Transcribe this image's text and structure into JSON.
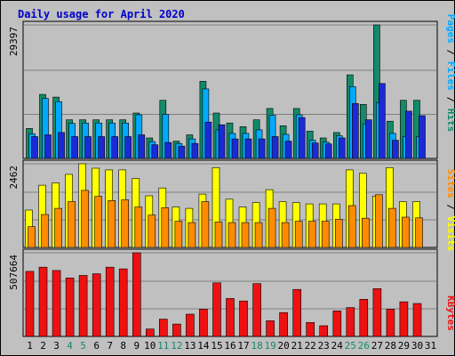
{
  "title": "Daily usage for April 2020",
  "colors": {
    "hits": "#138a6a",
    "files": "#00aaff",
    "pages": "#1a2bd6",
    "visits": "#ffff00",
    "sites": "#ff8c00",
    "kbytes": "#ee1111",
    "weekend": "#138a6a",
    "separator": "#000000",
    "panel_bg": "#c0c0c0",
    "grid": "#808080"
  },
  "side_labels": {
    "top": [
      "Pages",
      "Files",
      "Hits"
    ],
    "middle": [
      "Sites",
      "Visits"
    ],
    "bottom": [
      "KBytes"
    ]
  },
  "chart_data": [
    {
      "type": "bar",
      "panel": "top",
      "categories": [
        "1",
        "2",
        "3",
        "4",
        "5",
        "6",
        "7",
        "8",
        "9",
        "10",
        "11",
        "12",
        "13",
        "14",
        "15",
        "16",
        "17",
        "18",
        "19",
        "20",
        "21",
        "22",
        "23",
        "24",
        "25",
        "26",
        "27",
        "28",
        "29",
        "30",
        "31"
      ],
      "weekend_days": [
        "4",
        "5",
        "11",
        "12",
        "18",
        "19",
        "25",
        "26"
      ],
      "ymax": 29397,
      "ytick_label": "29397",
      "series": [
        {
          "name": "Hits",
          "values": [
            6600,
            14100,
            13500,
            8500,
            8500,
            8500,
            8500,
            8500,
            10000,
            4500,
            12800,
            3800,
            5200,
            17000,
            10000,
            7800,
            7000,
            8500,
            11000,
            7200,
            11000,
            6000,
            4500,
            5700,
            18400,
            11900,
            29397,
            8200,
            12800,
            12800,
            0
          ]
        },
        {
          "name": "Files",
          "values": [
            5400,
            13200,
            12500,
            7700,
            7800,
            7800,
            7800,
            7800,
            9600,
            3700,
            9700,
            3300,
            4300,
            15300,
            6300,
            5500,
            5500,
            6300,
            9500,
            5300,
            9600,
            4000,
            3600,
            5000,
            15800,
            7600,
            12300,
            5500,
            4800,
            4800,
            0
          ]
        },
        {
          "name": "Pages",
          "values": [
            4800,
            5200,
            5700,
            4800,
            4800,
            4800,
            4800,
            4800,
            5200,
            3000,
            3500,
            2700,
            3300,
            8000,
            7400,
            4300,
            4300,
            4300,
            4800,
            3800,
            9000,
            3400,
            3200,
            4500,
            12100,
            8500,
            16500,
            4000,
            10400,
            9400,
            0
          ]
        }
      ]
    },
    {
      "type": "bar",
      "panel": "middle",
      "categories": [
        "1",
        "2",
        "3",
        "4",
        "5",
        "6",
        "7",
        "8",
        "9",
        "10",
        "11",
        "12",
        "13",
        "14",
        "15",
        "16",
        "17",
        "18",
        "19",
        "20",
        "21",
        "22",
        "23",
        "24",
        "25",
        "26",
        "27",
        "28",
        "29",
        "30",
        "31"
      ],
      "ymax": 2462,
      "ytick_label": "2462",
      "series": [
        {
          "name": "Visits",
          "values": [
            1100,
            1830,
            1900,
            2150,
            2462,
            2330,
            2280,
            2280,
            2030,
            1520,
            1750,
            1190,
            1150,
            1570,
            2350,
            1420,
            1190,
            1320,
            1700,
            1350,
            1320,
            1280,
            1280,
            1280,
            2280,
            2180,
            1510,
            2350,
            1350,
            1350,
            0
          ]
        },
        {
          "name": "Sites",
          "values": [
            610,
            970,
            1150,
            1350,
            1680,
            1500,
            1380,
            1400,
            1190,
            950,
            1170,
            770,
            730,
            1350,
            750,
            730,
            730,
            730,
            1150,
            730,
            770,
            770,
            770,
            830,
            1230,
            860,
            1550,
            1150,
            890,
            870,
            0
          ]
        }
      ]
    },
    {
      "type": "bar",
      "panel": "bottom",
      "categories": [
        "1",
        "2",
        "3",
        "4",
        "5",
        "6",
        "7",
        "8",
        "9",
        "10",
        "11",
        "12",
        "13",
        "14",
        "15",
        "16",
        "17",
        "18",
        "19",
        "20",
        "21",
        "22",
        "23",
        "24",
        "25",
        "26",
        "27",
        "28",
        "29",
        "30",
        "31"
      ],
      "ymax": 507664,
      "ytick_label": "507664",
      "series": [
        {
          "name": "KBytes",
          "values": [
            395000,
            420000,
            400000,
            355000,
            370000,
            380000,
            420000,
            410000,
            507664,
            45000,
            105000,
            75000,
            135000,
            165000,
            325000,
            230000,
            215000,
            320000,
            95000,
            145000,
            285000,
            85000,
            65000,
            155000,
            175000,
            225000,
            290000,
            165000,
            210000,
            200000,
            0
          ]
        }
      ]
    }
  ]
}
